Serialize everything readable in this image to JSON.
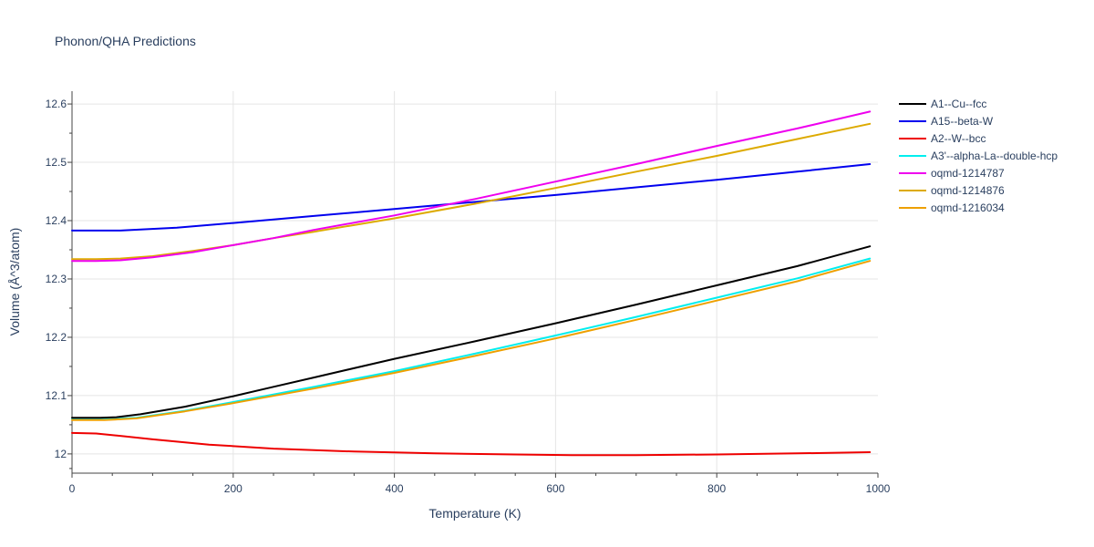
{
  "chart_data": {
    "type": "line",
    "title": "Phonon/QHA Predictions",
    "xlabel": "Temperature (K)",
    "ylabel": "Volume (Å^3/atom)",
    "xlim": [
      0,
      1000
    ],
    "ylim": [
      11.967,
      12.622
    ],
    "x_ticks": [
      0,
      200,
      400,
      600,
      800,
      1000
    ],
    "y_ticks": [
      12,
      12.1,
      12.2,
      12.3,
      12.4,
      12.5,
      12.6
    ],
    "x_tick_labels": [
      "0",
      "200",
      "400",
      "600",
      "800",
      "1000"
    ],
    "y_tick_labels": [
      "12",
      "12.1",
      "12.2",
      "12.3",
      "12.4",
      "12.5",
      "12.6"
    ],
    "grid": true,
    "legend_position": "right",
    "series": [
      {
        "name": "A1--Cu--fcc",
        "color": "#000000",
        "x": [
          0,
          35,
          55,
          85,
          140,
          200,
          250,
          300,
          400,
          500,
          600,
          700,
          800,
          900,
          990
        ],
        "y": [
          12.062,
          12.062,
          12.063,
          12.068,
          12.081,
          12.099,
          12.115,
          12.131,
          12.163,
          12.193,
          12.224,
          12.256,
          12.289,
          12.322,
          12.356
        ]
      },
      {
        "name": "A15--beta-W",
        "color": "#0000ee",
        "x": [
          0,
          30,
          60,
          130,
          200,
          300,
          400,
          500,
          600,
          700,
          800,
          900,
          990
        ],
        "y": [
          12.383,
          12.383,
          12.383,
          12.388,
          12.396,
          12.408,
          12.42,
          12.432,
          12.444,
          12.457,
          12.47,
          12.484,
          12.497
        ]
      },
      {
        "name": "A2--W--bcc",
        "color": "#ee0000",
        "x": [
          0,
          30,
          60,
          100,
          170,
          250,
          350,
          450,
          550,
          620,
          700,
          800,
          900,
          990
        ],
        "y": [
          12.036,
          12.035,
          12.031,
          12.025,
          12.016,
          12.009,
          12.004,
          12.001,
          11.999,
          11.998,
          11.998,
          11.999,
          12.001,
          12.003
        ]
      },
      {
        "name": "A3'--alpha-La--double-hcp",
        "color": "#00eeee",
        "x": [
          0,
          40,
          80,
          140,
          200,
          300,
          400,
          500,
          600,
          700,
          800,
          900,
          990
        ],
        "y": [
          12.059,
          12.059,
          12.062,
          12.074,
          12.089,
          12.115,
          12.142,
          12.172,
          12.203,
          12.235,
          12.268,
          12.301,
          12.335
        ]
      },
      {
        "name": "oqmd-1214787",
        "color": "#ee00ee",
        "x": [
          0,
          30,
          60,
          100,
          150,
          200,
          250,
          300,
          400,
          500,
          600,
          700,
          800,
          900,
          990
        ],
        "y": [
          12.331,
          12.331,
          12.332,
          12.337,
          12.346,
          12.358,
          12.37,
          12.384,
          12.409,
          12.437,
          12.467,
          12.497,
          12.528,
          12.558,
          12.587
        ]
      },
      {
        "name": "oqmd-1214876",
        "color": "#ddaa00",
        "x": [
          0,
          30,
          60,
          100,
          150,
          200,
          250,
          300,
          400,
          500,
          600,
          700,
          800,
          900,
          990
        ],
        "y": [
          12.334,
          12.334,
          12.335,
          12.339,
          12.348,
          12.358,
          12.37,
          12.381,
          12.404,
          12.429,
          12.456,
          12.484,
          12.511,
          12.54,
          12.566
        ]
      },
      {
        "name": "oqmd-1216034",
        "color": "#eea000",
        "x": [
          0,
          40,
          80,
          140,
          200,
          300,
          400,
          500,
          600,
          700,
          800,
          900,
          990
        ],
        "y": [
          12.058,
          12.058,
          12.061,
          12.073,
          12.087,
          12.112,
          12.139,
          12.168,
          12.198,
          12.23,
          12.263,
          12.296,
          12.331
        ]
      }
    ]
  }
}
